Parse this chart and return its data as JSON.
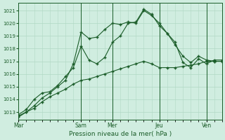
{
  "xlabel": "Pression niveau de la mer( hPa )",
  "ylim": [
    1012.4,
    1021.6
  ],
  "yticks": [
    1013,
    1014,
    1015,
    1016,
    1017,
    1018,
    1019,
    1020,
    1021
  ],
  "bg_color": "#d0ede0",
  "grid_color": "#b0d8c4",
  "line_color": "#1a5c28",
  "xtick_labels": [
    "Mar",
    "Sam",
    "Mer",
    "Jeu",
    "Ven"
  ],
  "xtick_positions": [
    0,
    48,
    72,
    108,
    144
  ],
  "xlim": [
    0,
    156
  ],
  "series1_x": [
    0,
    6,
    12,
    18,
    24,
    30,
    36,
    42,
    48,
    54,
    60,
    66,
    72,
    78,
    84,
    90,
    96,
    102,
    108,
    114,
    120,
    126,
    132,
    138,
    144,
    150,
    156
  ],
  "series1_y": [
    1012.6,
    1013.0,
    1013.5,
    1014.1,
    1014.5,
    1015.0,
    1015.5,
    1016.8,
    1019.3,
    1018.8,
    1018.9,
    1019.5,
    1020.0,
    1019.9,
    1020.1,
    1020.0,
    1021.0,
    1020.6,
    1020.0,
    1019.2,
    1018.3,
    1017.4,
    1016.9,
    1017.4,
    1017.1,
    1017.0,
    1017.0
  ],
  "series2_x": [
    0,
    6,
    12,
    18,
    24,
    30,
    36,
    42,
    48,
    54,
    60,
    66,
    72,
    78,
    84,
    90,
    96,
    102,
    108,
    114,
    120,
    126,
    132,
    138,
    144,
    150,
    156
  ],
  "series2_y": [
    1012.8,
    1013.2,
    1014.0,
    1014.5,
    1014.6,
    1015.1,
    1015.8,
    1016.5,
    1018.2,
    1017.1,
    1016.8,
    1017.3,
    1018.5,
    1019.0,
    1020.0,
    1020.1,
    1021.1,
    1020.7,
    1019.8,
    1019.2,
    1018.5,
    1016.9,
    1016.5,
    1017.2,
    1016.8,
    1017.1,
    1017.1
  ],
  "series3_x": [
    0,
    6,
    12,
    18,
    24,
    30,
    36,
    42,
    48,
    54,
    60,
    66,
    72,
    78,
    84,
    90,
    96,
    102,
    108,
    114,
    120,
    126,
    132,
    138,
    144,
    150,
    156
  ],
  "series3_y": [
    1012.7,
    1013.0,
    1013.3,
    1013.8,
    1014.2,
    1014.5,
    1014.8,
    1015.2,
    1015.5,
    1015.6,
    1015.8,
    1016.0,
    1016.2,
    1016.4,
    1016.6,
    1016.8,
    1017.0,
    1016.8,
    1016.5,
    1016.5,
    1016.5,
    1016.6,
    1016.7,
    1016.8,
    1017.0,
    1017.0,
    1017.0
  ],
  "vlines_x": [
    48,
    72,
    108,
    144
  ],
  "vline_color": "#1a5c28"
}
